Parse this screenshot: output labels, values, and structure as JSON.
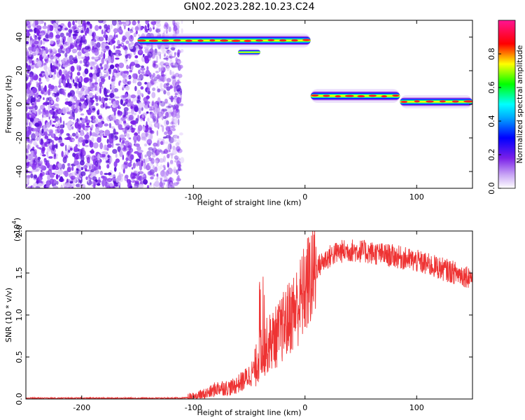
{
  "figure": {
    "title": "GN02.2023.282.10.23.C24"
  },
  "chart_data": [
    {
      "type": "heatmap",
      "title": "GN02.2023.282.10.23.C24",
      "xlabel": "Height of straight line (km)",
      "ylabel": "Frequency (Hz)",
      "xlim": [
        -250,
        150
      ],
      "ylim": [
        -50,
        50
      ],
      "xticks": [
        -200,
        -100,
        0,
        100
      ],
      "yticks": [
        -40,
        -20,
        0,
        20,
        40
      ],
      "colorbar": {
        "label": "Normalized spectral amplitude",
        "range": [
          0,
          1
        ],
        "ticks": [
          "0.0",
          "0.2",
          "0.4",
          "0.6",
          "0.8"
        ],
        "colormap": [
          "#ffffff",
          "#8a2be2",
          "#0000ff",
          "#00ffff",
          "#00ff00",
          "#ffff00",
          "#ff0000",
          "#ff1493"
        ]
      },
      "noise_region": {
        "x_range": [
          -250,
          -110
        ],
        "y_range": [
          -50,
          50
        ],
        "color": "#7a1fe8"
      },
      "tracks": [
        {
          "x_range": [
            -150,
            5
          ],
          "frequency": 38,
          "amplitude": 0.9
        },
        {
          "x_range": [
            -60,
            -40
          ],
          "frequency": 31,
          "amplitude": 0.5
        },
        {
          "x_range": [
            5,
            85
          ],
          "frequency": 5,
          "amplitude": 0.9
        },
        {
          "x_range": [
            85,
            150
          ],
          "frequency": 1.5,
          "amplitude": 0.85
        }
      ]
    },
    {
      "type": "line",
      "xlabel": "Height of straight line (km)",
      "ylabel": "SNR (10 * v/v)",
      "y_scale_label": "(x10",
      "y_scale_exponent": "4",
      "xlim": [
        -250,
        150
      ],
      "ylim": [
        0,
        2.0
      ],
      "xticks": [
        -200,
        -100,
        0,
        100
      ],
      "yticks": [
        "0.0",
        "0.5",
        "1.0",
        "1.5",
        "2.0"
      ],
      "series": [
        {
          "color": "#ee3333",
          "x": [
            -250,
            -150,
            -110,
            -100,
            -95,
            -90,
            -85,
            -80,
            -75,
            -70,
            -65,
            -60,
            -55,
            -50,
            -45,
            -40,
            -35,
            -30,
            -25,
            -20,
            -15,
            -10,
            -5,
            0,
            5,
            10,
            15,
            20,
            25,
            30,
            35,
            40,
            50,
            60,
            70,
            80,
            90,
            100,
            110,
            120,
            130,
            140,
            150
          ],
          "values": [
            0.01,
            0.01,
            0.01,
            0.02,
            0.04,
            0.06,
            0.08,
            0.12,
            0.14,
            0.13,
            0.14,
            0.18,
            0.22,
            0.28,
            0.35,
            0.55,
            0.62,
            0.7,
            0.75,
            0.85,
            0.95,
            1.05,
            1.15,
            1.3,
            1.45,
            1.55,
            1.62,
            1.68,
            1.72,
            1.75,
            1.76,
            1.77,
            1.76,
            1.74,
            1.72,
            1.7,
            1.67,
            1.64,
            1.6,
            1.56,
            1.52,
            1.48,
            1.45
          ]
        }
      ]
    }
  ]
}
